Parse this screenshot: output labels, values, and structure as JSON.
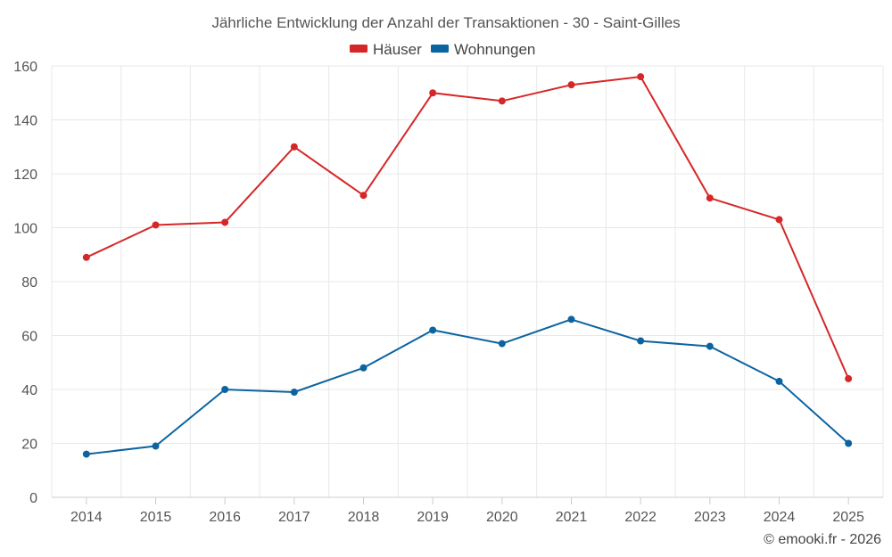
{
  "chart_data": {
    "type": "line",
    "title": "Jährliche Entwicklung der Anzahl der Transaktionen - 30 - Saint-Gilles",
    "categories": [
      "2014",
      "2015",
      "2016",
      "2017",
      "2018",
      "2019",
      "2020",
      "2021",
      "2022",
      "2023",
      "2024",
      "2025"
    ],
    "series": [
      {
        "name": "Häuser",
        "color": "#d62728",
        "values": [
          89,
          101,
          102,
          130,
          112,
          150,
          147,
          153,
          156,
          111,
          103,
          44
        ]
      },
      {
        "name": "Wohnungen",
        "color": "#0b64a0",
        "values": [
          16,
          19,
          40,
          39,
          48,
          62,
          57,
          66,
          58,
          56,
          43,
          20
        ]
      }
    ],
    "ylim": [
      0,
      160
    ],
    "yticks": [
      0,
      20,
      40,
      60,
      80,
      100,
      120,
      140,
      160
    ],
    "grid": true,
    "legend_position": "top-center",
    "xlabel": "",
    "ylabel": ""
  },
  "credit": "© emooki.fr - 2026"
}
